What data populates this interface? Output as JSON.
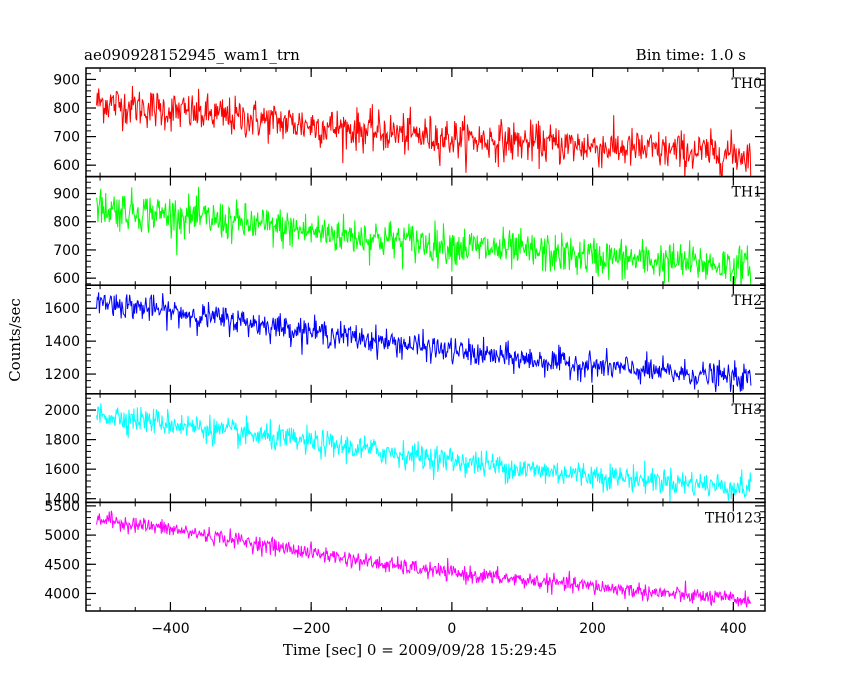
{
  "header": {
    "title": "ae090928152945_wam1_trn",
    "bin_time": "Bin time: 1.0 s"
  },
  "axes": {
    "xlabel": "Time [sec] 0 = 2009/09/28 15:29:45",
    "ylabel": "Counts/sec"
  },
  "chart_data": {
    "type": "line",
    "title": "ae090928152945_wam1_trn",
    "xlabel": "Time [sec] 0 = 2009/09/28 15:29:45",
    "ylabel": "Counts/sec",
    "xlim": [
      -520,
      445
    ],
    "x_ticks": [
      -400,
      -200,
      0,
      200,
      400
    ],
    "x_range_of_data": [
      -505,
      425
    ],
    "bin_time_s": 1.0,
    "grid": false,
    "panels": [
      {
        "name": "TH0",
        "color": "#ff0000",
        "ylim": [
          560,
          940
        ],
        "y_ticks": [
          600,
          700,
          800,
          900
        ],
        "trend_x": [
          -500,
          -400,
          -300,
          -200,
          -100,
          0,
          100,
          200,
          300,
          400,
          425
        ],
        "trend_y": [
          820,
          790,
          765,
          740,
          715,
          695,
          680,
          665,
          650,
          640,
          635
        ],
        "noise": 35
      },
      {
        "name": "TH1",
        "color": "#00ff00",
        "ylim": [
          575,
          960
        ],
        "y_ticks": [
          600,
          700,
          800,
          900
        ],
        "trend_x": [
          -500,
          -400,
          -300,
          -200,
          -100,
          0,
          100,
          200,
          300,
          400,
          425
        ],
        "trend_y": [
          850,
          825,
          795,
          765,
          740,
          715,
          695,
          675,
          660,
          645,
          640
        ],
        "noise": 35
      },
      {
        "name": "TH2",
        "color": "#0000ff",
        "ylim": [
          1080,
          1740
        ],
        "y_ticks": [
          1200,
          1400,
          1600
        ],
        "trend_x": [
          -500,
          -400,
          -300,
          -200,
          -100,
          0,
          100,
          200,
          300,
          400,
          425
        ],
        "trend_y": [
          1640,
          1580,
          1520,
          1460,
          1400,
          1340,
          1290,
          1250,
          1210,
          1180,
          1170
        ],
        "noise": 40
      },
      {
        "name": "TH3",
        "color": "#00ffff",
        "ylim": [
          1375,
          2110
        ],
        "y_ticks": [
          1400,
          1600,
          1800,
          2000
        ],
        "trend_x": [
          -500,
          -400,
          -300,
          -200,
          -100,
          0,
          100,
          200,
          300,
          400,
          425
        ],
        "trend_y": [
          1970,
          1910,
          1840,
          1780,
          1720,
          1660,
          1600,
          1560,
          1520,
          1480,
          1470
        ],
        "noise": 45
      },
      {
        "name": "TH0123",
        "color": "#ff00ff",
        "ylim": [
          3700,
          5560
        ],
        "y_ticks": [
          4000,
          4500,
          5000,
          5500
        ],
        "trend_x": [
          -500,
          -400,
          -300,
          -200,
          -100,
          0,
          100,
          200,
          300,
          400,
          425
        ],
        "trend_y": [
          5270,
          5100,
          4900,
          4700,
          4500,
          4350,
          4230,
          4120,
          4000,
          3900,
          3880
        ],
        "noise": 70
      }
    ]
  }
}
